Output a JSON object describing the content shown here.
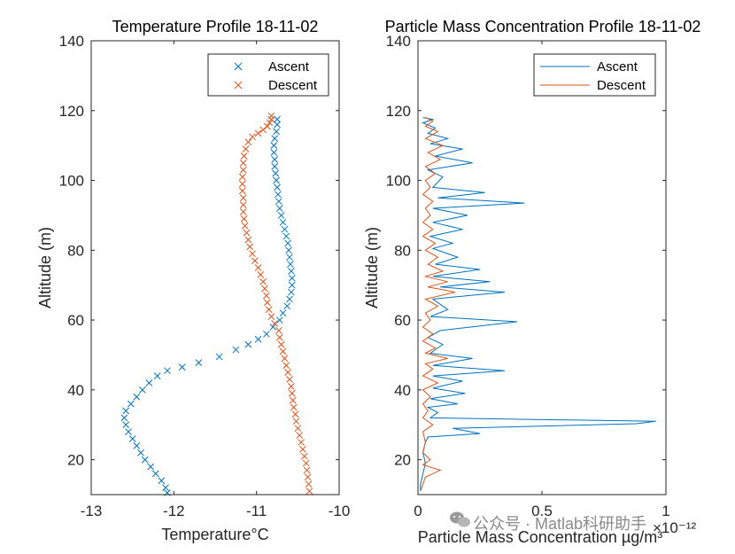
{
  "chart_data": [
    {
      "type": "scatter",
      "title": "Temperature Profile 18-11-02",
      "xlabel": "Temperature°C",
      "ylabel": "Altitude (m)",
      "xlim": [
        -13,
        -10
      ],
      "ylim": [
        10,
        140
      ],
      "xticks": [
        "-13",
        "-12",
        "-11",
        "-10"
      ],
      "yticks": [
        "20",
        "40",
        "60",
        "80",
        "100",
        "120",
        "140"
      ],
      "marker": "x",
      "legend_position": "top-right",
      "series": [
        {
          "name": "Ascent",
          "color": "#0072BD",
          "points": [
            [
              -12.08,
              10.5
            ],
            [
              -12.1,
              12
            ],
            [
              -12.15,
              14
            ],
            [
              -12.22,
              16
            ],
            [
              -12.28,
              18
            ],
            [
              -12.35,
              20
            ],
            [
              -12.4,
              22
            ],
            [
              -12.45,
              24
            ],
            [
              -12.5,
              26
            ],
            [
              -12.55,
              28
            ],
            [
              -12.58,
              30
            ],
            [
              -12.6,
              32
            ],
            [
              -12.58,
              34
            ],
            [
              -12.52,
              36
            ],
            [
              -12.45,
              38
            ],
            [
              -12.38,
              40
            ],
            [
              -12.3,
              42
            ],
            [
              -12.2,
              44
            ],
            [
              -12.08,
              45.5
            ],
            [
              -11.9,
              46.5
            ],
            [
              -11.7,
              47.8
            ],
            [
              -11.45,
              49.5
            ],
            [
              -11.25,
              51.5
            ],
            [
              -11.1,
              53
            ],
            [
              -10.98,
              54.5
            ],
            [
              -10.88,
              56
            ],
            [
              -10.8,
              58
            ],
            [
              -10.72,
              60
            ],
            [
              -10.68,
              62
            ],
            [
              -10.63,
              64
            ],
            [
              -10.6,
              66
            ],
            [
              -10.58,
              68
            ],
            [
              -10.57,
              70
            ],
            [
              -10.57,
              72
            ],
            [
              -10.58,
              74
            ],
            [
              -10.59,
              76
            ],
            [
              -10.6,
              78
            ],
            [
              -10.61,
              80
            ],
            [
              -10.62,
              82
            ],
            [
              -10.64,
              84
            ],
            [
              -10.66,
              86
            ],
            [
              -10.68,
              88
            ],
            [
              -10.7,
              90
            ],
            [
              -10.72,
              92
            ],
            [
              -10.73,
              94
            ],
            [
              -10.74,
              96
            ],
            [
              -10.75,
              98
            ],
            [
              -10.76,
              100
            ],
            [
              -10.77,
              102
            ],
            [
              -10.78,
              104
            ],
            [
              -10.78,
              106
            ],
            [
              -10.79,
              108
            ],
            [
              -10.79,
              110
            ],
            [
              -10.78,
              112
            ],
            [
              -10.76,
              114
            ],
            [
              -10.75,
              116
            ],
            [
              -10.75,
              117.5
            ]
          ]
        },
        {
          "name": "Descent",
          "color": "#D95319",
          "points": [
            [
              -10.36,
              11
            ],
            [
              -10.37,
              13
            ],
            [
              -10.38,
              15
            ],
            [
              -10.39,
              17
            ],
            [
              -10.4,
              19
            ],
            [
              -10.42,
              21
            ],
            [
              -10.44,
              23
            ],
            [
              -10.46,
              25
            ],
            [
              -10.48,
              27
            ],
            [
              -10.5,
              29
            ],
            [
              -10.52,
              31
            ],
            [
              -10.53,
              33
            ],
            [
              -10.55,
              35
            ],
            [
              -10.56,
              37
            ],
            [
              -10.57,
              39
            ],
            [
              -10.58,
              41
            ],
            [
              -10.6,
              43
            ],
            [
              -10.62,
              45
            ],
            [
              -10.64,
              47
            ],
            [
              -10.66,
              49
            ],
            [
              -10.68,
              51
            ],
            [
              -10.7,
              53
            ],
            [
              -10.72,
              55
            ],
            [
              -10.73,
              57
            ],
            [
              -10.78,
              59
            ],
            [
              -10.82,
              61
            ],
            [
              -10.85,
              63
            ],
            [
              -10.87,
              65
            ],
            [
              -10.88,
              67
            ],
            [
              -10.9,
              69
            ],
            [
              -10.92,
              71
            ],
            [
              -10.95,
              73
            ],
            [
              -10.98,
              75
            ],
            [
              -11.02,
              77
            ],
            [
              -11.05,
              79
            ],
            [
              -11.08,
              81
            ],
            [
              -11.1,
              83
            ],
            [
              -11.12,
              85
            ],
            [
              -11.14,
              87
            ],
            [
              -11.15,
              89
            ],
            [
              -11.16,
              91
            ],
            [
              -11.16,
              93
            ],
            [
              -11.16,
              95
            ],
            [
              -11.17,
              97
            ],
            [
              -11.17,
              99
            ],
            [
              -11.17,
              101
            ],
            [
              -11.16,
              103
            ],
            [
              -11.16,
              105
            ],
            [
              -11.15,
              107
            ],
            [
              -11.13,
              109
            ],
            [
              -11.1,
              111
            ],
            [
              -11.05,
              112.5
            ],
            [
              -10.98,
              113.5
            ],
            [
              -10.92,
              114.5
            ],
            [
              -10.87,
              115.5
            ],
            [
              -10.84,
              116.5
            ],
            [
              -10.82,
              117.5
            ],
            [
              -10.82,
              118.5
            ]
          ]
        }
      ]
    },
    {
      "type": "line",
      "title": "Particle Mass Concentration Profile 18-11-02",
      "xlabel": "Particle Mass Concentration  µg/m³",
      "x_exponent": "×10⁻¹²",
      "ylabel": "Altitude (m)",
      "xlim": [
        0,
        1
      ],
      "ylim": [
        10,
        140
      ],
      "xticks": [
        "0",
        "0.5",
        "1"
      ],
      "yticks": [
        "20",
        "40",
        "60",
        "80",
        "100",
        "120",
        "140"
      ],
      "legend_position": "top-right",
      "series": [
        {
          "name": "Ascent",
          "color": "#0072BD",
          "points": [
            [
              0.01,
              11
            ],
            [
              0.01,
              13
            ],
            [
              0.02,
              16
            ],
            [
              0.03,
              19
            ],
            [
              0.02,
              22
            ],
            [
              0.03,
              25
            ],
            [
              0.04,
              26.5
            ],
            [
              0.25,
              27.5
            ],
            [
              0.14,
              29
            ],
            [
              0.88,
              30.3
            ],
            [
              0.96,
              31
            ],
            [
              0.05,
              32
            ],
            [
              0.08,
              33.5
            ],
            [
              0.04,
              35
            ],
            [
              0.16,
              36
            ],
            [
              0.05,
              37.5
            ],
            [
              0.19,
              39
            ],
            [
              0.06,
              40.5
            ],
            [
              0.18,
              42.5
            ],
            [
              0.06,
              44
            ],
            [
              0.35,
              45.5
            ],
            [
              0.06,
              47
            ],
            [
              0.22,
              49
            ],
            [
              0.05,
              50.5
            ],
            [
              0.1,
              53
            ],
            [
              0.04,
              55
            ],
            [
              0.09,
              57
            ],
            [
              0.4,
              59.5
            ],
            [
              0.05,
              61
            ],
            [
              0.12,
              63
            ],
            [
              0.06,
              66
            ],
            [
              0.35,
              68
            ],
            [
              0.09,
              69.5
            ],
            [
              0.29,
              71
            ],
            [
              0.06,
              72.5
            ],
            [
              0.25,
              74.5
            ],
            [
              0.07,
              76
            ],
            [
              0.16,
              78
            ],
            [
              0.06,
              80.5
            ],
            [
              0.14,
              82
            ],
            [
              0.05,
              84
            ],
            [
              0.18,
              86
            ],
            [
              0.06,
              88
            ],
            [
              0.2,
              90
            ],
            [
              0.06,
              92
            ],
            [
              0.43,
              93.5
            ],
            [
              0.08,
              95
            ],
            [
              0.27,
              96.5
            ],
            [
              0.06,
              98
            ],
            [
              0.1,
              101
            ],
            [
              0.04,
              103
            ],
            [
              0.22,
              105
            ],
            [
              0.07,
              107
            ],
            [
              0.18,
              109
            ],
            [
              0.05,
              110.5
            ],
            [
              0.12,
              112
            ],
            [
              0.04,
              113.5
            ],
            [
              0.07,
              115
            ],
            [
              0.02,
              116.5
            ],
            [
              0.06,
              117.5
            ],
            [
              0.02,
              118
            ]
          ]
        },
        {
          "name": "Descent",
          "color": "#D95319",
          "points": [
            [
              0.01,
              11
            ],
            [
              0.02,
              13
            ],
            [
              0.03,
              15
            ],
            [
              0.09,
              17
            ],
            [
              0.02,
              18.5
            ],
            [
              0.05,
              20
            ],
            [
              0.02,
              22
            ],
            [
              0.03,
              25
            ],
            [
              0.02,
              28
            ],
            [
              0.06,
              30
            ],
            [
              0.02,
              32
            ],
            [
              0.04,
              34
            ],
            [
              0.02,
              36
            ],
            [
              0.05,
              38
            ],
            [
              0.02,
              40
            ],
            [
              0.08,
              42
            ],
            [
              0.02,
              44
            ],
            [
              0.06,
              46
            ],
            [
              0.03,
              47.5
            ],
            [
              0.12,
              49
            ],
            [
              0.03,
              50.5
            ],
            [
              0.07,
              52
            ],
            [
              0.02,
              54
            ],
            [
              0.06,
              56
            ],
            [
              0.02,
              58
            ],
            [
              0.05,
              60
            ],
            [
              0.03,
              62
            ],
            [
              0.08,
              64
            ],
            [
              0.03,
              66
            ],
            [
              0.15,
              68
            ],
            [
              0.04,
              69.5
            ],
            [
              0.12,
              71
            ],
            [
              0.03,
              72.5
            ],
            [
              0.1,
              74
            ],
            [
              0.04,
              76
            ],
            [
              0.08,
              78
            ],
            [
              0.03,
              80
            ],
            [
              0.07,
              82
            ],
            [
              0.02,
              84
            ],
            [
              0.06,
              86
            ],
            [
              0.02,
              88
            ],
            [
              0.05,
              90
            ],
            [
              0.03,
              92
            ],
            [
              0.06,
              94
            ],
            [
              0.02,
              96
            ],
            [
              0.05,
              98
            ],
            [
              0.03,
              100
            ],
            [
              0.07,
              102
            ],
            [
              0.03,
              104
            ],
            [
              0.09,
              106
            ],
            [
              0.04,
              108
            ],
            [
              0.1,
              110
            ],
            [
              0.03,
              112
            ],
            [
              0.08,
              114
            ],
            [
              0.03,
              115.5
            ],
            [
              0.06,
              117
            ],
            [
              0.03,
              118
            ]
          ]
        }
      ]
    }
  ],
  "watermark": "公众号 · Matlab科研助手",
  "watermark_icon": "wechat-icon"
}
